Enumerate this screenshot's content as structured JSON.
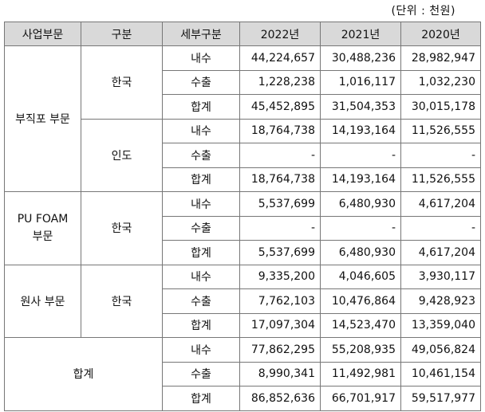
{
  "unit_note": "(단위 : 천원)",
  "headers": [
    "사업부문",
    "구분",
    "세부구분",
    "2022년",
    "2021년",
    "2020년"
  ],
  "groups": [
    {
      "segment": "부직포 부문",
      "subgroups": [
        {
          "region": "한국",
          "rows": [
            {
              "detail": "내수",
              "y2022": "44,224,657",
              "y2021": "30,488,236",
              "y2020": "28,982,947"
            },
            {
              "detail": "수출",
              "y2022": "1,228,238",
              "y2021": "1,016,117",
              "y2020": "1,032,230"
            },
            {
              "detail": "합계",
              "y2022": "45,452,895",
              "y2021": "31,504,353",
              "y2020": "30,015,178"
            }
          ]
        },
        {
          "region": "인도",
          "rows": [
            {
              "detail": "내수",
              "y2022": "18,764,738",
              "y2021": "14,193,164",
              "y2020": "11,526,555"
            },
            {
              "detail": "수출",
              "y2022": "-",
              "y2021": "-",
              "y2020": "-"
            },
            {
              "detail": "합계",
              "y2022": "18,764,738",
              "y2021": "14,193,164",
              "y2020": "11,526,555"
            }
          ]
        }
      ]
    },
    {
      "segment_line1": "PU FOAM",
      "segment_line2": "부문",
      "subgroups": [
        {
          "region": "한국",
          "rows": [
            {
              "detail": "내수",
              "y2022": "5,537,699",
              "y2021": "6,480,930",
              "y2020": "4,617,204"
            },
            {
              "detail": "수출",
              "y2022": "-",
              "y2021": "-",
              "y2020": "-"
            },
            {
              "detail": "합계",
              "y2022": "5,537,699",
              "y2021": "6,480,930",
              "y2020": "4,617,204"
            }
          ]
        }
      ]
    },
    {
      "segment": "원사 부문",
      "subgroups": [
        {
          "region": "한국",
          "rows": [
            {
              "detail": "내수",
              "y2022": "9,335,200",
              "y2021": "4,046,605",
              "y2020": "3,930,117"
            },
            {
              "detail": "수출",
              "y2022": "7,762,103",
              "y2021": "10,476,864",
              "y2020": "9,428,923"
            },
            {
              "detail": "합계",
              "y2022": "17,097,304",
              "y2021": "14,523,470",
              "y2020": "13,359,040"
            }
          ]
        }
      ]
    }
  ],
  "total": {
    "label": "합계",
    "rows": [
      {
        "detail": "내수",
        "y2022": "77,862,295",
        "y2021": "55,208,935",
        "y2020": "49,056,824"
      },
      {
        "detail": "수출",
        "y2022": "8,990,341",
        "y2021": "11,492,981",
        "y2020": "10,461,154"
      },
      {
        "detail": "합계",
        "y2022": "86,852,636",
        "y2021": "66,701,917",
        "y2020": "59,517,977"
      }
    ]
  }
}
